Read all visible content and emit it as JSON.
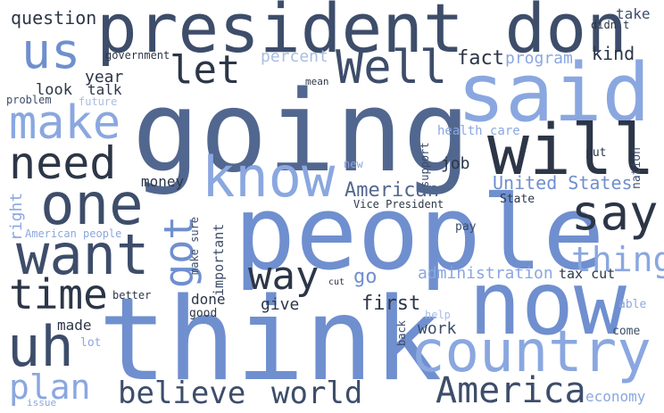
{
  "words": [
    {
      "text": "president don t",
      "color": "#3d4d6a"
    },
    {
      "text": "going",
      "color": "#52678f"
    },
    {
      "text": "people",
      "color": "#6f8fcf"
    },
    {
      "text": "think",
      "color": "#6f8fcf"
    },
    {
      "text": "said",
      "color": "#8aa7e0"
    },
    {
      "text": "now",
      "color": "#6f8fcf"
    },
    {
      "text": "Well",
      "color": "#3d4d6a"
    },
    {
      "text": "will",
      "color": "#2c3647"
    },
    {
      "text": "know",
      "color": "#8aa7e0"
    },
    {
      "text": "want",
      "color": "#3d4d6a"
    },
    {
      "text": "one",
      "color": "#3d4d6a"
    },
    {
      "text": "country",
      "color": "#8aa7e0"
    },
    {
      "text": "say",
      "color": "#2c3647"
    },
    {
      "text": "us",
      "color": "#6f8fcf"
    },
    {
      "text": "make",
      "color": "#8aa7e0"
    },
    {
      "text": "need",
      "color": "#2c3647"
    },
    {
      "text": "let",
      "color": "#2c3647"
    },
    {
      "text": "uh",
      "color": "#3d4d6a"
    },
    {
      "text": "time",
      "color": "#2c3647"
    },
    {
      "text": "way",
      "color": "#2c3647"
    },
    {
      "text": "got",
      "color": "#6f8fcf"
    },
    {
      "text": "thing",
      "color": "#8aa7e0"
    },
    {
      "text": "America",
      "color": "#3d4d6a"
    },
    {
      "text": "believe",
      "color": "#3d4d6a"
    },
    {
      "text": "world",
      "color": "#3d4d6a"
    },
    {
      "text": "plan",
      "color": "#8aa7e0"
    },
    {
      "text": "question",
      "color": "#2c3647"
    },
    {
      "text": "percent",
      "color": "#a8bde6"
    },
    {
      "text": "program",
      "color": "#8aa7e0"
    },
    {
      "text": "fact",
      "color": "#2c3647"
    },
    {
      "text": "kind",
      "color": "#2c3647"
    },
    {
      "text": "take",
      "color": "#3d4d6a"
    },
    {
      "text": "didn t",
      "color": "#2c3647"
    },
    {
      "text": "government",
      "color": "#2c3647"
    },
    {
      "text": "year",
      "color": "#2c3647"
    },
    {
      "text": "talk",
      "color": "#2c3647"
    },
    {
      "text": "look",
      "color": "#2c3647"
    },
    {
      "text": "problem",
      "color": "#3d4d6a"
    },
    {
      "text": "future",
      "color": "#a8bde6"
    },
    {
      "text": "mean",
      "color": "#2c3647"
    },
    {
      "text": "health care",
      "color": "#8aa7e0"
    },
    {
      "text": "job",
      "color": "#2c3647"
    },
    {
      "text": "new",
      "color": "#8aa7e0"
    },
    {
      "text": "support",
      "color": "#3d4d6a"
    },
    {
      "text": "put",
      "color": "#2c3647"
    },
    {
      "text": "nation",
      "color": "#3d4d6a"
    },
    {
      "text": "United States",
      "color": "#6f8fcf"
    },
    {
      "text": "American",
      "color": "#52678f"
    },
    {
      "text": "money",
      "color": "#2c3647"
    },
    {
      "text": "Vice President",
      "color": "#2c3647"
    },
    {
      "text": "State",
      "color": "#2c3647"
    },
    {
      "text": "right",
      "color": "#8aa7e0"
    },
    {
      "text": "American people",
      "color": "#8aa7e0"
    },
    {
      "text": "make sure",
      "color": "#3d4d6a"
    },
    {
      "text": "important",
      "color": "#3d4d6a"
    },
    {
      "text": "pay",
      "color": "#3d4d6a"
    },
    {
      "text": "administration",
      "color": "#8aa7e0"
    },
    {
      "text": "go",
      "color": "#6f8fcf"
    },
    {
      "text": "tax cut",
      "color": "#2c3647"
    },
    {
      "text": "cut",
      "color": "#2c3647"
    },
    {
      "text": "better",
      "color": "#2c3647"
    },
    {
      "text": "done",
      "color": "#2c3647"
    },
    {
      "text": "good",
      "color": "#2c3647"
    },
    {
      "text": "give",
      "color": "#2c3647"
    },
    {
      "text": "first",
      "color": "#2c3647"
    },
    {
      "text": "able",
      "color": "#8aa7e0"
    },
    {
      "text": "help",
      "color": "#a8bde6"
    },
    {
      "text": "back",
      "color": "#3d4d6a"
    },
    {
      "text": "made",
      "color": "#2c3647"
    },
    {
      "text": "work",
      "color": "#3d4d6a"
    },
    {
      "text": "come",
      "color": "#3d4d6a"
    },
    {
      "text": "lot",
      "color": "#8aa7e0"
    },
    {
      "text": "economy",
      "color": "#8aa7e0"
    },
    {
      "text": "issue",
      "color": "#8aa7e0"
    }
  ]
}
